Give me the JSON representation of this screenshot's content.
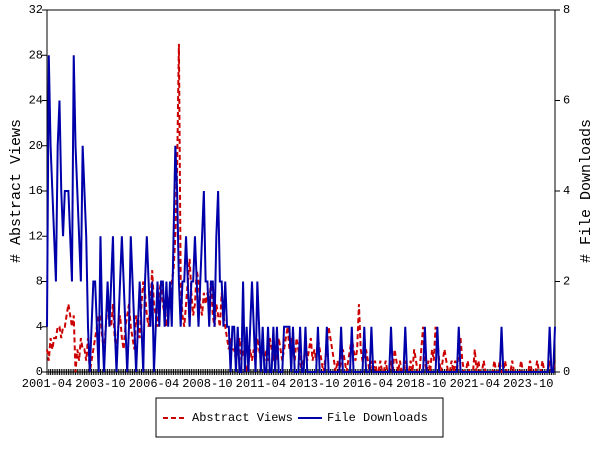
{
  "chart_data": {
    "type": "line",
    "categories": [
      "2001-04",
      null,
      null,
      null,
      null,
      null,
      null,
      null,
      null,
      null,
      null,
      null,
      null,
      null,
      null,
      null,
      null,
      null,
      null,
      null,
      null,
      null,
      null,
      null,
      null,
      null,
      null,
      null,
      null,
      null,
      "2003-10",
      null,
      null,
      null,
      null,
      null,
      null,
      null,
      null,
      null,
      null,
      null,
      null,
      null,
      null,
      null,
      null,
      null,
      null,
      null,
      null,
      null,
      null,
      null,
      null,
      null,
      null,
      null,
      null,
      null,
      "2006-04",
      null,
      null,
      null,
      null,
      null,
      null,
      null,
      null,
      null,
      null,
      null,
      null,
      null,
      null,
      null,
      null,
      null,
      null,
      null,
      null,
      null,
      null,
      null,
      null,
      null,
      null,
      null,
      null,
      null,
      "2008-10",
      null,
      null,
      null,
      null,
      null,
      null,
      null,
      null,
      null,
      null,
      null,
      null,
      null,
      null,
      null,
      null,
      null,
      null,
      null,
      null,
      null,
      null,
      null,
      null,
      null,
      null,
      null,
      null,
      null,
      "2011-04",
      null,
      null,
      null,
      null,
      null,
      null,
      null,
      null,
      null,
      null,
      null,
      null,
      null,
      null,
      null,
      null,
      null,
      null,
      null,
      null,
      null,
      null,
      null,
      null,
      null,
      null,
      null,
      null,
      null,
      "2013-10",
      null,
      null,
      null,
      null,
      null,
      null,
      null,
      null,
      null,
      null,
      null,
      null,
      null,
      null,
      null,
      null,
      null,
      null,
      null,
      null,
      null,
      null,
      null,
      null,
      null,
      null,
      null,
      null,
      null,
      "2016-04",
      null,
      null,
      null,
      null,
      null,
      null,
      null,
      null,
      null,
      null,
      null,
      null,
      null,
      null,
      null,
      null,
      null,
      null,
      null,
      null,
      null,
      null,
      null,
      null,
      null,
      null,
      null,
      null,
      null,
      "2018-10",
      null,
      null,
      null,
      null,
      null,
      null,
      null,
      null,
      null,
      null,
      null,
      null,
      null,
      null,
      null,
      null,
      null,
      null,
      null,
      null,
      null,
      null,
      null,
      null,
      null,
      null,
      null,
      null,
      null,
      "2021-04",
      null,
      null,
      null,
      null,
      null,
      null,
      null,
      null,
      null,
      null,
      null,
      null,
      null,
      null,
      null,
      null,
      null,
      null,
      null,
      null,
      null,
      null,
      null,
      null,
      null,
      null,
      null,
      null,
      null,
      "2023-10",
      null,
      null,
      null,
      null,
      null,
      null,
      null,
      null,
      null,
      null,
      null,
      null,
      null,
      null,
      null
    ],
    "series": [
      {
        "name": "Abstract Views",
        "color": "#cc0000",
        "dashed": true,
        "values": [
          2,
          1,
          3,
          2,
          3,
          3,
          4,
          4,
          3,
          4,
          4,
          5,
          6,
          5,
          4,
          5,
          0,
          2,
          1,
          3,
          2,
          2,
          1,
          3,
          0,
          1,
          2,
          3,
          4,
          5,
          5,
          3,
          2,
          4,
          6,
          5,
          4,
          6,
          3,
          2,
          4,
          5,
          3,
          2,
          4,
          5,
          6,
          4,
          3,
          2,
          5,
          4,
          3,
          6,
          8,
          7,
          5,
          4,
          6,
          9,
          6,
          5,
          4,
          7,
          8,
          6,
          5,
          4,
          6,
          7,
          8,
          9,
          12,
          18,
          29,
          8,
          5,
          4,
          6,
          8,
          10,
          7,
          5,
          6,
          9,
          8,
          6,
          5,
          7,
          6,
          7,
          6,
          8,
          5,
          4,
          6,
          5,
          4,
          7,
          5,
          4,
          3,
          2,
          3,
          2,
          2,
          1,
          2,
          3,
          1,
          2,
          1,
          0,
          1,
          2,
          1,
          2,
          1,
          3,
          2,
          1,
          2,
          1,
          2,
          1,
          3,
          2,
          1,
          2,
          1,
          3,
          2,
          1,
          2,
          3,
          4,
          2,
          3,
          2,
          1,
          3,
          2,
          1,
          0,
          1,
          2,
          1,
          2,
          3,
          1,
          2,
          1,
          3,
          2,
          1,
          0,
          1,
          2,
          4,
          3,
          2,
          1,
          0,
          1,
          0,
          1,
          2,
          1,
          0,
          1,
          2,
          3,
          2,
          1,
          2,
          6,
          2,
          1,
          1,
          2,
          1,
          0,
          1,
          0,
          1,
          0,
          0,
          1,
          0,
          0,
          1,
          0,
          0,
          1,
          0,
          2,
          1,
          0,
          1,
          0,
          0,
          1,
          0,
          0,
          1,
          0,
          2,
          1,
          0,
          0,
          2,
          4,
          1,
          0,
          1,
          0,
          2,
          1,
          4,
          3,
          1,
          0,
          1,
          2,
          1,
          0,
          0,
          1,
          0,
          1,
          0,
          2,
          3,
          1,
          0,
          0,
          1,
          0,
          0,
          0,
          2,
          0,
          1,
          0,
          0,
          1,
          0,
          0,
          0,
          0,
          0,
          1,
          0,
          0,
          1,
          0,
          0,
          1,
          0,
          0,
          0,
          1,
          0,
          0,
          0,
          0,
          1,
          0,
          0,
          0,
          0,
          1,
          0,
          0,
          0,
          1,
          0,
          0,
          1,
          0,
          0,
          0,
          1,
          0,
          0,
          1
        ]
      },
      {
        "name": "File Downloads",
        "color": "#0000aa",
        "dashed": false,
        "axis": "y2",
        "values": [
          1,
          7,
          5,
          4,
          3,
          2,
          5,
          6,
          4,
          3,
          4,
          4,
          4,
          3,
          2,
          7,
          5,
          4,
          3,
          2,
          5,
          4,
          3,
          1,
          0,
          1,
          2,
          2,
          1,
          0,
          3,
          1,
          0,
          1,
          2,
          1,
          2,
          3,
          1,
          0,
          1,
          2,
          3,
          2,
          1,
          0,
          1,
          3,
          2,
          1,
          0,
          1,
          2,
          1,
          0,
          2,
          3,
          2,
          1,
          2,
          0,
          1,
          2,
          1,
          2,
          2,
          1,
          2,
          1,
          2,
          1,
          3,
          5,
          4,
          2,
          1,
          2,
          2,
          3,
          2,
          1,
          2,
          2,
          3,
          2,
          1,
          2,
          3,
          4,
          2,
          2,
          1,
          2,
          2,
          1,
          3,
          4,
          2,
          2,
          1,
          2,
          1,
          1,
          0,
          1,
          1,
          0,
          1,
          0,
          0,
          2,
          0,
          1,
          0,
          1,
          2,
          1,
          0,
          2,
          1,
          0,
          1,
          0,
          0,
          1,
          0,
          0,
          1,
          0,
          1,
          0,
          0,
          0,
          1,
          1,
          1,
          1,
          0,
          1,
          0,
          0,
          0,
          1,
          0,
          0,
          1,
          0,
          0,
          0,
          0,
          0,
          0,
          1,
          0,
          0,
          0,
          0,
          1,
          0,
          0,
          0,
          0,
          0,
          0,
          0,
          1,
          0,
          0,
          0,
          0,
          0,
          1,
          0,
          0,
          0,
          0,
          0,
          0,
          1,
          0,
          0,
          0,
          1,
          0,
          0,
          0,
          0,
          0,
          0,
          0,
          0,
          0,
          0,
          1,
          0,
          0,
          0,
          0,
          0,
          0,
          0,
          1,
          0,
          0,
          0,
          0,
          0,
          0,
          0,
          0,
          0,
          0,
          1,
          0,
          0,
          0,
          0,
          0,
          0,
          1,
          0,
          0,
          0,
          0,
          0,
          0,
          0,
          0,
          0,
          0,
          0,
          1,
          0,
          0,
          0,
          0,
          0,
          0,
          0,
          0,
          0,
          0,
          0,
          0,
          0,
          0,
          0,
          0,
          0,
          0,
          0,
          0,
          0,
          0,
          0,
          1,
          0,
          0,
          0,
          0,
          0,
          0,
          0,
          0,
          0,
          0,
          0,
          0,
          0,
          0,
          0,
          0,
          0,
          0,
          0,
          0,
          0,
          0,
          0,
          0,
          0,
          0,
          1,
          0,
          0,
          1
        ]
      }
    ],
    "y_label": "# Abstract Views",
    "y2_label": "# File Downloads",
    "ylim": [
      0,
      32
    ],
    "yticks": [
      0,
      4,
      8,
      12,
      16,
      20,
      24,
      28,
      32
    ],
    "y2lim": [
      0,
      8
    ],
    "y2ticks": [
      0,
      2,
      4,
      6,
      8
    ],
    "legend": "bottom"
  }
}
